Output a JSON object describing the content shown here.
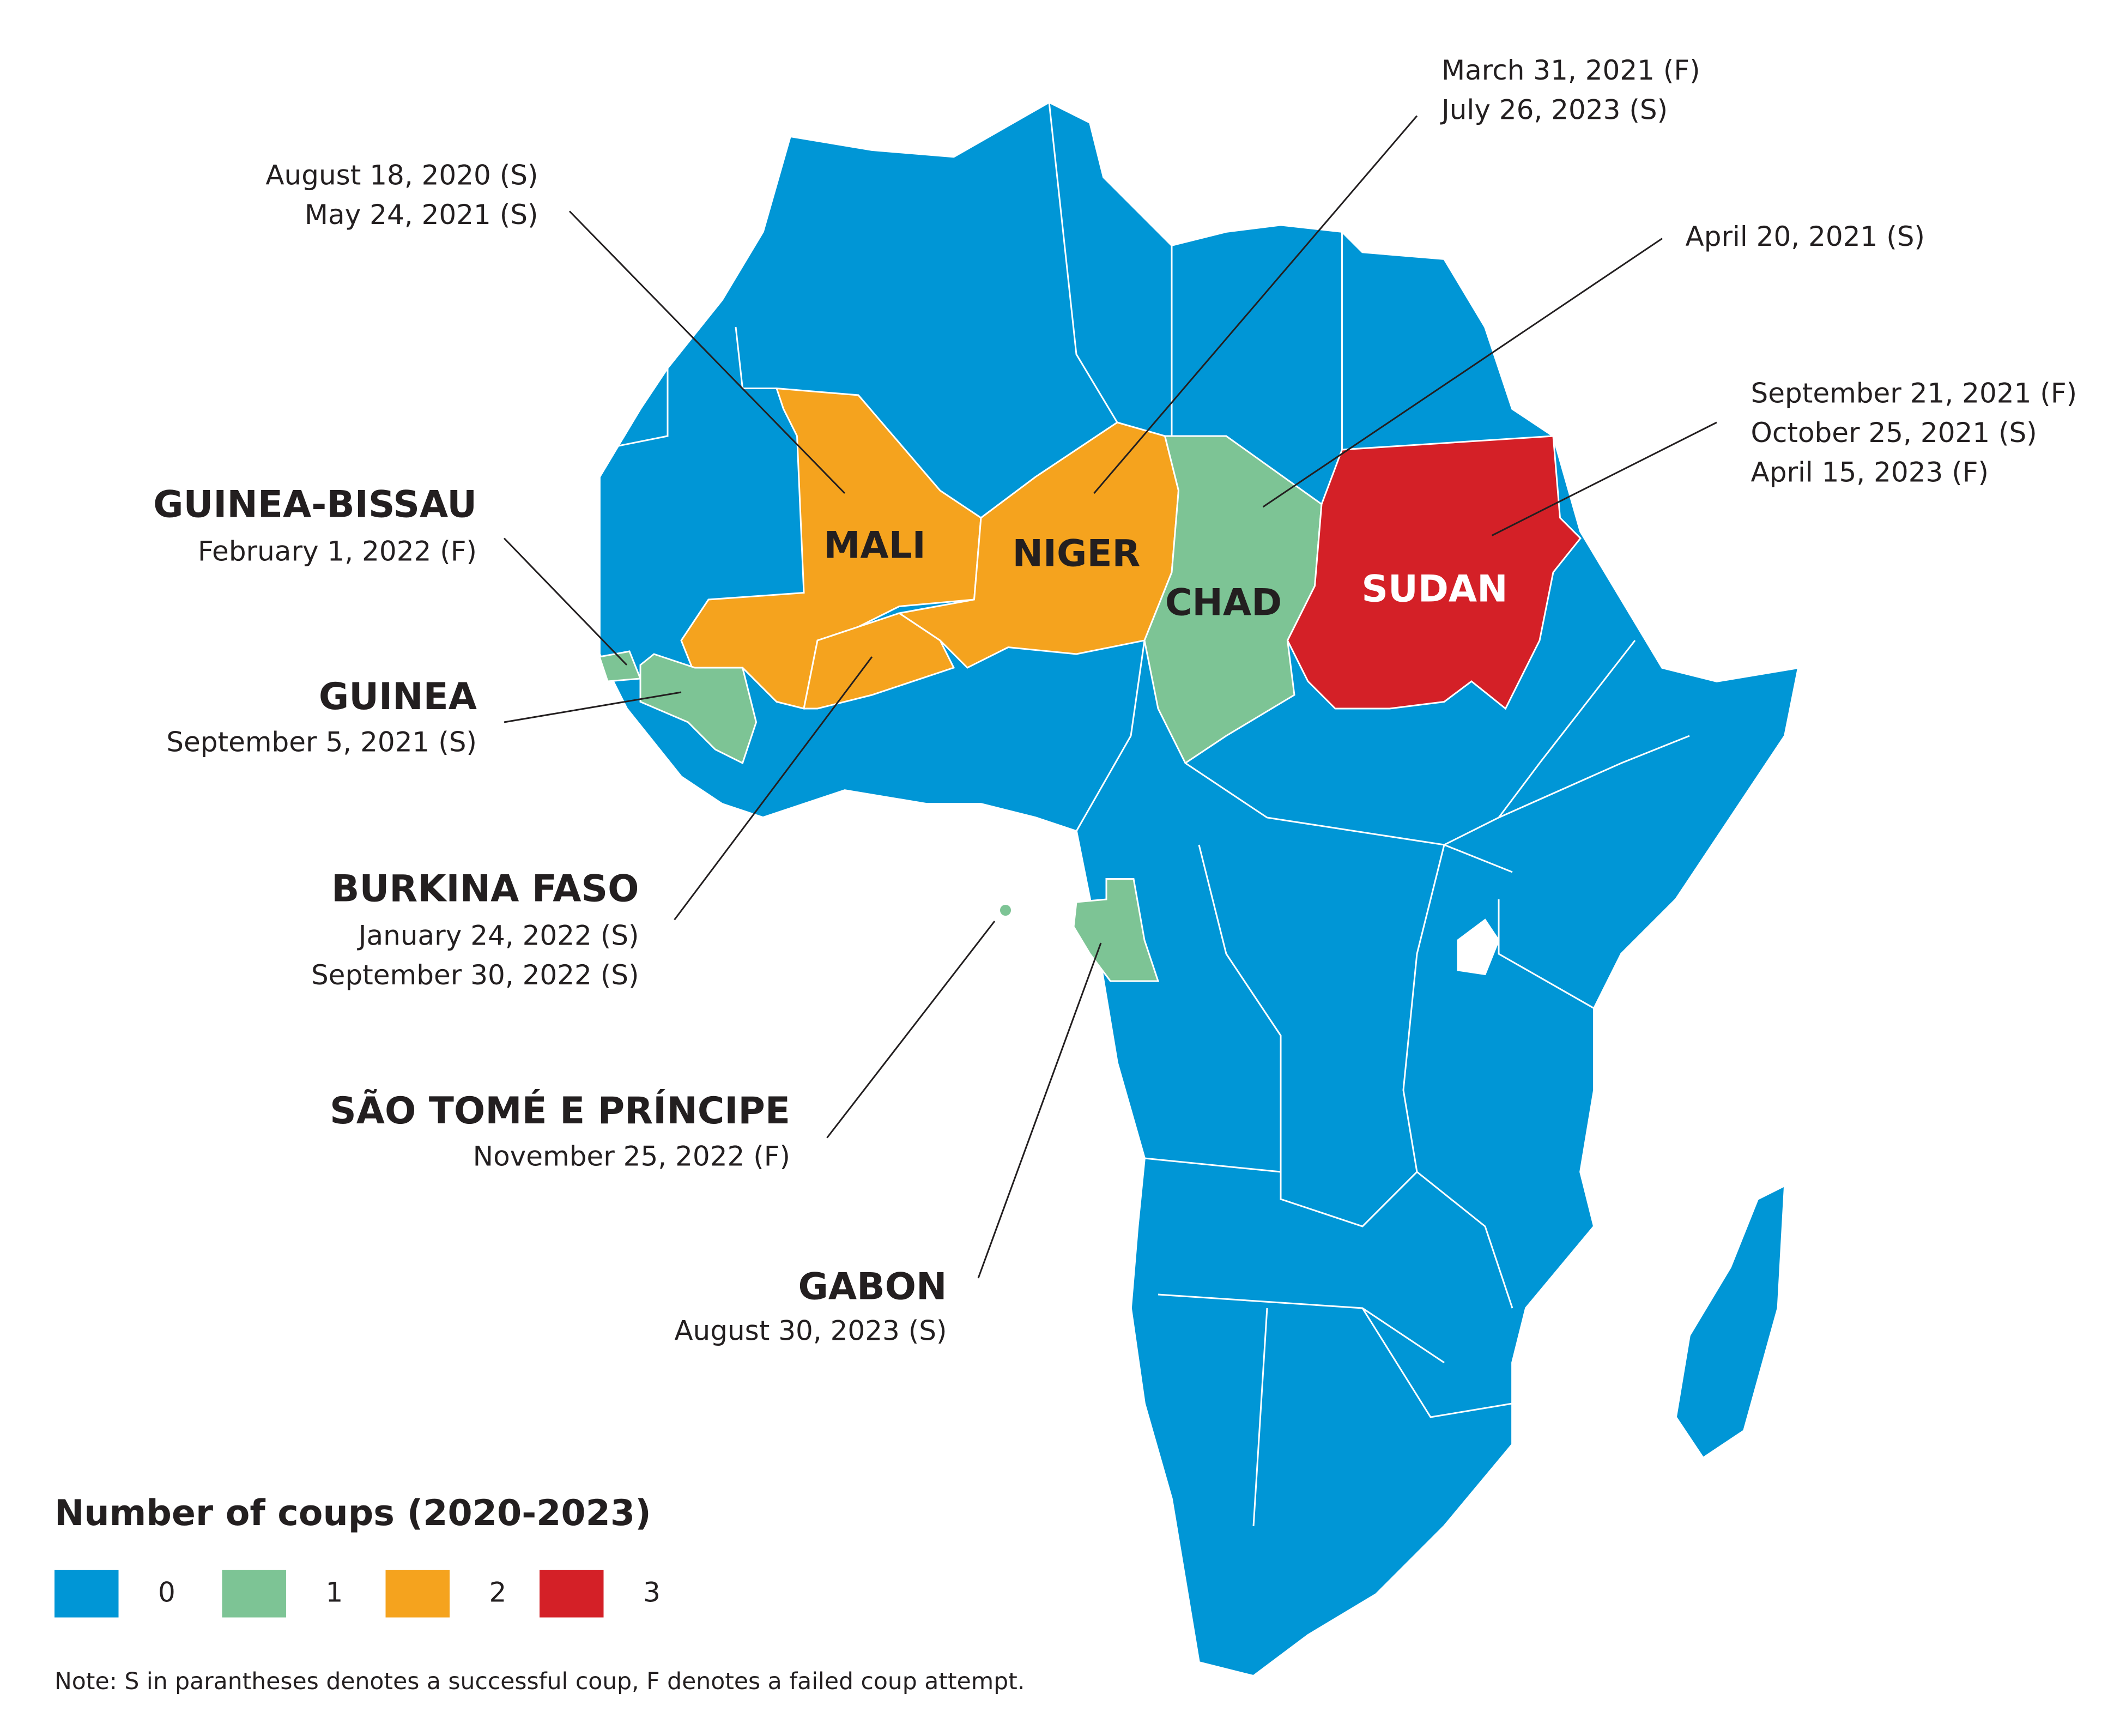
{
  "legend": {
    "title": "Number of coups (2020-2023)",
    "items": [
      {
        "label": 0,
        "color": "#0096d6"
      },
      {
        "label": 1,
        "color": "#7dc495"
      },
      {
        "label": 2,
        "color": "#f5a31e"
      },
      {
        "label": 3,
        "color": "#d42027"
      }
    ]
  },
  "countries": [
    {
      "name": "MALI",
      "coups": 2,
      "dates": [
        "August 18, 2020 (S)",
        "May 24, 2021 (S)"
      ]
    },
    {
      "name": "NIGER",
      "coups": 2,
      "dates": [
        "March 31, 2021 (F)",
        "July 26, 2023 (S)"
      ]
    },
    {
      "name": "CHAD",
      "coups": 1,
      "dates": [
        "April 20, 2021 (S)"
      ]
    },
    {
      "name": "SUDAN",
      "coups": 3,
      "dates": [
        "September 21, 2021 (F)",
        "October 25, 2021 (S)",
        "April 15, 2023 (F)"
      ]
    },
    {
      "name": "GUINEA-BISSAU",
      "coups": 1,
      "dates": [
        "February 1, 2022 (F)"
      ]
    },
    {
      "name": "GUINEA",
      "coups": 1,
      "dates": [
        "September 5, 2021 (S)"
      ]
    },
    {
      "name": "BURKINA FASO",
      "coups": 2,
      "dates": [
        "January 24, 2022 (S)",
        "September 30, 2022 (S)"
      ]
    },
    {
      "name": "SÃO TOMÉ E PRÍNCIPE",
      "coups": 1,
      "dates": [
        "November 25, 2022 (F)"
      ]
    },
    {
      "name": "GABON",
      "coups": 1,
      "dates": [
        "August 30, 2023 (S)"
      ]
    }
  ],
  "note": "Note: S in parantheses denotes a successful coup, F denotes a failed coup attempt."
}
